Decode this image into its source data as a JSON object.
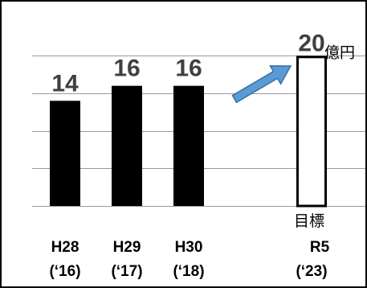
{
  "chart_data": {
    "type": "bar",
    "categories": [
      "H28 ('16)",
      "H29 ('17)",
      "H30 ('18)",
      "R5 ('23)"
    ],
    "category_labels": [
      {
        "line1": "H28",
        "line2": "(‘16)"
      },
      {
        "line1": "H29",
        "line2": "(‘17)"
      },
      {
        "line1": "H30",
        "line2": "(‘18)"
      },
      {
        "line1": "R5",
        "line2": "(‘23)"
      }
    ],
    "values": [
      14,
      16,
      16,
      20
    ],
    "value_labels": [
      "14",
      "16",
      "16",
      "20"
    ],
    "unit": "億円",
    "target_label": "目標",
    "title": "",
    "xlabel": "",
    "ylabel": "",
    "ylim": [
      0,
      21
    ],
    "grid": true,
    "bar_fill": "#000000",
    "target_bar_fill": "#ffffff",
    "arrow_color": "#5b9bd5"
  }
}
